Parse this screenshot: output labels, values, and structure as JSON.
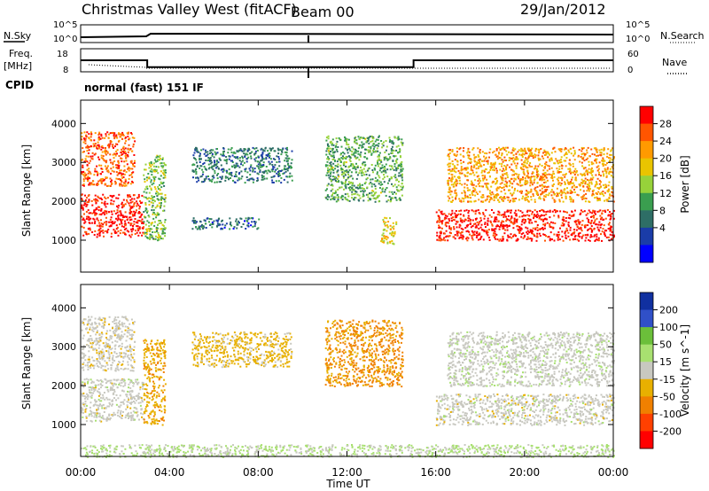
{
  "header": {
    "station": "Christmas Valley West (fitACF)",
    "beam": "Beam 00",
    "date": "29/Jan/2012"
  },
  "noise_panel": {
    "left_label": "N.Sky",
    "right_label": "N.Search",
    "left_ticks": [
      "10^5",
      "10^0"
    ],
    "right_ticks": [
      "10^5",
      "10^0"
    ]
  },
  "freq_panel": {
    "left_label_1": "Freq.",
    "left_label_2": "[MHz]",
    "right_label": "Nave",
    "left_ticks": [
      "18",
      "8"
    ],
    "right_ticks": [
      "60",
      "0"
    ],
    "freq_steps": [
      {
        "start_hour": 0.0,
        "end_hour": 3.0,
        "freq_mhz": 13
      },
      {
        "start_hour": 3.0,
        "end_hour": 15.0,
        "freq_mhz": 10
      },
      {
        "start_hour": 15.0,
        "end_hour": 24.0,
        "freq_mhz": 13
      }
    ]
  },
  "cpid": {
    "label": "CPID",
    "mode": "normal (fast) 151 IF"
  },
  "power_panel": {
    "ylabel": "Slant Range [km]",
    "colorbar_label": "Power [dB]",
    "colorbar_ticks": [
      "28",
      "24",
      "20",
      "16",
      "12",
      "8",
      "4"
    ],
    "colorbar_colors": [
      "#ff0000",
      "#ff5500",
      "#ff9a00",
      "#e9c400",
      "#97d23a",
      "#3a9e4f",
      "#2e6e66",
      "#1a3ca8",
      "#0000ff"
    ]
  },
  "velocity_panel": {
    "ylabel": "Velocity [m s^-1]",
    "range_label": "Slant Range [km]",
    "colorbar_ticks": [
      "200",
      "100",
      "50",
      "15",
      "-15",
      "-50",
      "-100",
      "-200"
    ],
    "colorbar_colors": [
      "#1030a0",
      "#3050c8",
      "#6bbf3a",
      "#a8e070",
      "#c8c8c0",
      "#e8b000",
      "#f08000",
      "#ff4000",
      "#ff0000"
    ]
  },
  "x_axis": {
    "label": "Time UT",
    "ticks": [
      "00:00",
      "04:00",
      "08:00",
      "12:00",
      "16:00",
      "20:00",
      "00:00"
    ]
  },
  "chart_data": [
    {
      "type": "heatmap",
      "title": "Power",
      "xlabel": "Time UT",
      "ylabel": "Slant Range [km]",
      "x_range_hours": [
        0,
        24
      ],
      "ylim": [
        180,
        4600
      ],
      "y_ticks": [
        1000,
        2000,
        3000,
        4000
      ],
      "colorbar": {
        "label": "Power [dB]",
        "range": [
          0,
          30
        ],
        "ticks": [
          4,
          8,
          12,
          16,
          20,
          24,
          28
        ]
      },
      "regions": [
        {
          "t0": 0.0,
          "t1": 2.8,
          "r0": 1100,
          "r1": 2200,
          "power_db": 30
        },
        {
          "t0": 0.0,
          "t1": 2.4,
          "r0": 2400,
          "r1": 3800,
          "power_db": 26
        },
        {
          "t0": 2.8,
          "t1": 3.8,
          "r0": 1000,
          "r1": 3200,
          "power_db": 14
        },
        {
          "t0": 5.0,
          "t1": 9.5,
          "r0": 2500,
          "r1": 3400,
          "power_db": 8
        },
        {
          "t0": 5.0,
          "t1": 8.0,
          "r0": 1300,
          "r1": 1600,
          "power_db": 6
        },
        {
          "t0": 11.0,
          "t1": 14.5,
          "r0": 2000,
          "r1": 3700,
          "power_db": 12
        },
        {
          "t0": 13.5,
          "t1": 14.2,
          "r0": 900,
          "r1": 1600,
          "power_db": 18
        },
        {
          "t0": 16.0,
          "t1": 24.0,
          "r0": 1000,
          "r1": 1800,
          "power_db": 30
        },
        {
          "t0": 16.5,
          "t1": 24.0,
          "r0": 2000,
          "r1": 3400,
          "power_db": 22
        }
      ]
    },
    {
      "type": "heatmap",
      "title": "Velocity",
      "xlabel": "Time UT",
      "ylabel": "Slant Range [km]",
      "x_range_hours": [
        0,
        24
      ],
      "ylim": [
        180,
        4600
      ],
      "y_ticks": [
        1000,
        2000,
        3000,
        4000
      ],
      "colorbar": {
        "label": "Velocity [m s^-1]",
        "range": [
          -200,
          200
        ],
        "ticks": [
          -200,
          -100,
          -50,
          -15,
          15,
          50,
          100,
          200
        ]
      },
      "regions": [
        {
          "t0": 0.0,
          "t1": 2.8,
          "r0": 1100,
          "r1": 2200,
          "velocity": 0
        },
        {
          "t0": 0.0,
          "t1": 2.4,
          "r0": 2400,
          "r1": 3800,
          "velocity": -5
        },
        {
          "t0": 2.8,
          "t1": 3.8,
          "r0": 1000,
          "r1": 3200,
          "velocity": -60
        },
        {
          "t0": 5.0,
          "t1": 9.5,
          "r0": 2500,
          "r1": 3400,
          "velocity": -40
        },
        {
          "t0": 11.0,
          "t1": 14.5,
          "r0": 2000,
          "r1": 3700,
          "velocity": -80
        },
        {
          "t0": 16.0,
          "t1": 24.0,
          "r0": 1000,
          "r1": 1800,
          "velocity": 0
        },
        {
          "t0": 16.5,
          "t1": 24.0,
          "r0": 2000,
          "r1": 3400,
          "velocity": 5
        },
        {
          "t0": 0.0,
          "t1": 24.0,
          "r0": 180,
          "r1": 500,
          "velocity": 30
        }
      ]
    }
  ]
}
